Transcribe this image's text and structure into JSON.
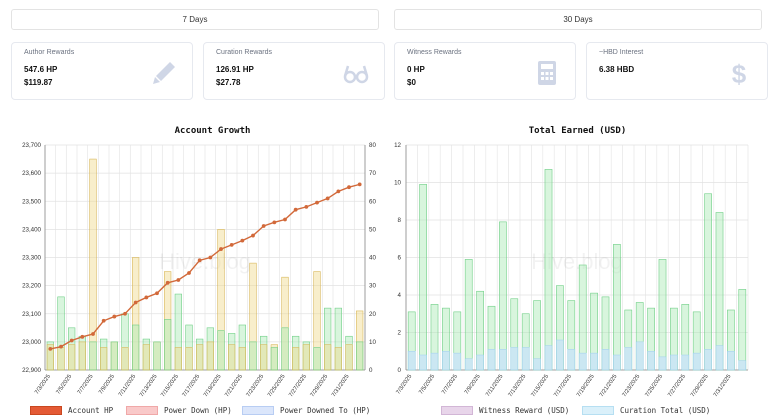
{
  "tabs": [
    "7 Days",
    "30 Days"
  ],
  "cards": [
    {
      "title": "Author Rewards",
      "lines": [
        "547.6 HP",
        "$119.87"
      ],
      "icon": "pencil-icon"
    },
    {
      "title": "Curation Rewards",
      "lines": [
        "126.91 HP",
        "$27.78"
      ],
      "icon": "glasses-icon"
    },
    {
      "title": "Witness Rewards",
      "lines": [
        "0 HP",
        "$0"
      ],
      "icon": "calculator-icon"
    },
    {
      "title": "~HBD Interest",
      "lines": [
        "6.38 HBD"
      ],
      "icon": "dollar-icon"
    }
  ],
  "colors": {
    "hp_line": "#d2693a",
    "power_down": "#f0d98c",
    "power_down_to": "#a8e8b4",
    "witness": "#a8e8b4",
    "curation": "#c8e4f8",
    "legend_hp": "#e45a35",
    "legend_pd": "#f9c9c9",
    "legend_pdt": "#dbe6fb",
    "legend_wit": "#e8d5ea",
    "legend_cur": "#daf0fa"
  },
  "watermark": "Hive.blog",
  "chart_data": [
    {
      "type": "bar+line",
      "title": "Account Growth",
      "categories": [
        "7/3/2025",
        "7/4/2025",
        "7/5/2025",
        "7/6/2025",
        "7/7/2025",
        "7/8/2025",
        "7/9/2025",
        "7/10/2025",
        "7/11/2025",
        "7/12/2025",
        "7/13/2025",
        "7/14/2025",
        "7/15/2025",
        "7/16/2025",
        "7/17/2025",
        "7/18/2025",
        "7/19/2025",
        "7/20/2025",
        "7/21/2025",
        "7/22/2025",
        "7/23/2025",
        "7/24/2025",
        "7/25/2025",
        "7/26/2025",
        "7/27/2025",
        "7/28/2025",
        "7/29/2025",
        "7/30/2025",
        "7/31/2025",
        "8/1/2025"
      ],
      "tick_labels": [
        "7/3/2025",
        "7/5/2025",
        "7/7/2025",
        "7/9/2025",
        "7/11/2025",
        "7/13/2025",
        "7/15/2025",
        "7/17/2025",
        "7/19/2025",
        "7/21/2025",
        "7/23/2025",
        "7/25/2025",
        "7/27/2025",
        "7/29/2025",
        "7/31/2025"
      ],
      "y_left": {
        "min": 22900,
        "max": 23700,
        "ticks": [
          "22,900",
          "23,000",
          "23,100",
          "23,200",
          "23,300",
          "23,400",
          "23,500",
          "23,600",
          "23,700"
        ]
      },
      "y_right": {
        "min": 0,
        "max": 80,
        "ticks": [
          "0",
          "10",
          "20",
          "30",
          "40",
          "50",
          "60",
          "70",
          "80"
        ]
      },
      "series": [
        {
          "name": "Account HP",
          "type": "line",
          "axis": "left",
          "values": [
            22975,
            22983,
            23005,
            23018,
            23028,
            23075,
            23090,
            23100,
            23140,
            23158,
            23173,
            23210,
            23220,
            23245,
            23290,
            23300,
            23330,
            23345,
            23360,
            23378,
            23412,
            23425,
            23435,
            23470,
            23480,
            23495,
            23510,
            23535,
            23550,
            23560
          ]
        },
        {
          "name": "Power Down (HP)",
          "type": "bar",
          "axis": "right",
          "values": [
            9,
            8,
            9,
            10,
            75,
            8,
            10,
            8,
            40,
            9,
            10,
            35,
            8,
            8,
            9,
            10,
            50,
            9,
            8,
            38,
            9,
            9,
            33,
            8,
            9,
            35,
            9,
            8,
            9,
            21
          ]
        },
        {
          "name": "Power Downed To (HP)",
          "type": "bar",
          "axis": "right",
          "values": [
            10,
            26,
            15,
            12,
            10,
            11,
            10,
            20,
            16,
            11,
            10,
            18,
            27,
            16,
            11,
            15,
            14,
            13,
            16,
            10,
            12,
            8,
            15,
            12,
            10,
            8,
            22,
            22,
            12,
            10
          ]
        }
      ],
      "grid": true,
      "legend": "bottom"
    },
    {
      "type": "bar",
      "title": "Total Earned (USD)",
      "categories": [
        "7/3/2025",
        "7/4/2025",
        "7/5/2025",
        "7/6/2025",
        "7/7/2025",
        "7/8/2025",
        "7/9/2025",
        "7/10/2025",
        "7/11/2025",
        "7/12/2025",
        "7/13/2025",
        "7/14/2025",
        "7/15/2025",
        "7/16/2025",
        "7/17/2025",
        "7/18/2025",
        "7/19/2025",
        "7/20/2025",
        "7/21/2025",
        "7/22/2025",
        "7/23/2025",
        "7/24/2025",
        "7/25/2025",
        "7/26/2025",
        "7/27/2025",
        "7/28/2025",
        "7/29/2025",
        "7/30/2025",
        "7/31/2025",
        "8/1/2025"
      ],
      "tick_labels": [
        "7/3/2025",
        "7/5/2025",
        "7/7/2025",
        "7/9/2025",
        "7/11/2025",
        "7/13/2025",
        "7/15/2025",
        "7/17/2025",
        "7/19/2025",
        "7/21/2025",
        "7/23/2025",
        "7/25/2025",
        "7/27/2025",
        "7/29/2025",
        "7/31/2025"
      ],
      "ylim": [
        0,
        12
      ],
      "y_ticks": [
        "0",
        "2",
        "4",
        "6",
        "8",
        "10",
        "12"
      ],
      "series": [
        {
          "name": "Witness Reward (USD)",
          "values": [
            3.1,
            9.9,
            3.5,
            3.3,
            3.1,
            5.9,
            4.2,
            3.4,
            7.9,
            3.8,
            3.0,
            3.7,
            10.7,
            4.5,
            3.7,
            5.6,
            4.1,
            3.9,
            6.7,
            3.2,
            3.6,
            3.3,
            5.9,
            3.3,
            3.5,
            3.1,
            9.4,
            8.4,
            3.2,
            4.3
          ]
        },
        {
          "name": "Curation Total (USD)",
          "values": [
            1.0,
            0.8,
            0.9,
            1.0,
            0.9,
            0.6,
            0.8,
            1.1,
            1.1,
            1.2,
            1.2,
            0.6,
            1.3,
            1.6,
            1.1,
            0.9,
            0.9,
            1.1,
            0.8,
            1.2,
            1.5,
            1.0,
            0.7,
            0.8,
            0.8,
            0.9,
            1.1,
            1.3,
            1.0,
            0.5
          ]
        }
      ],
      "grid": true,
      "legend": "bottom"
    }
  ],
  "legends": [
    [
      "Account HP",
      "Power Down (HP)",
      "Power Downed To (HP)"
    ],
    [
      "Witness Reward (USD)",
      "Curation Total (USD)"
    ]
  ]
}
